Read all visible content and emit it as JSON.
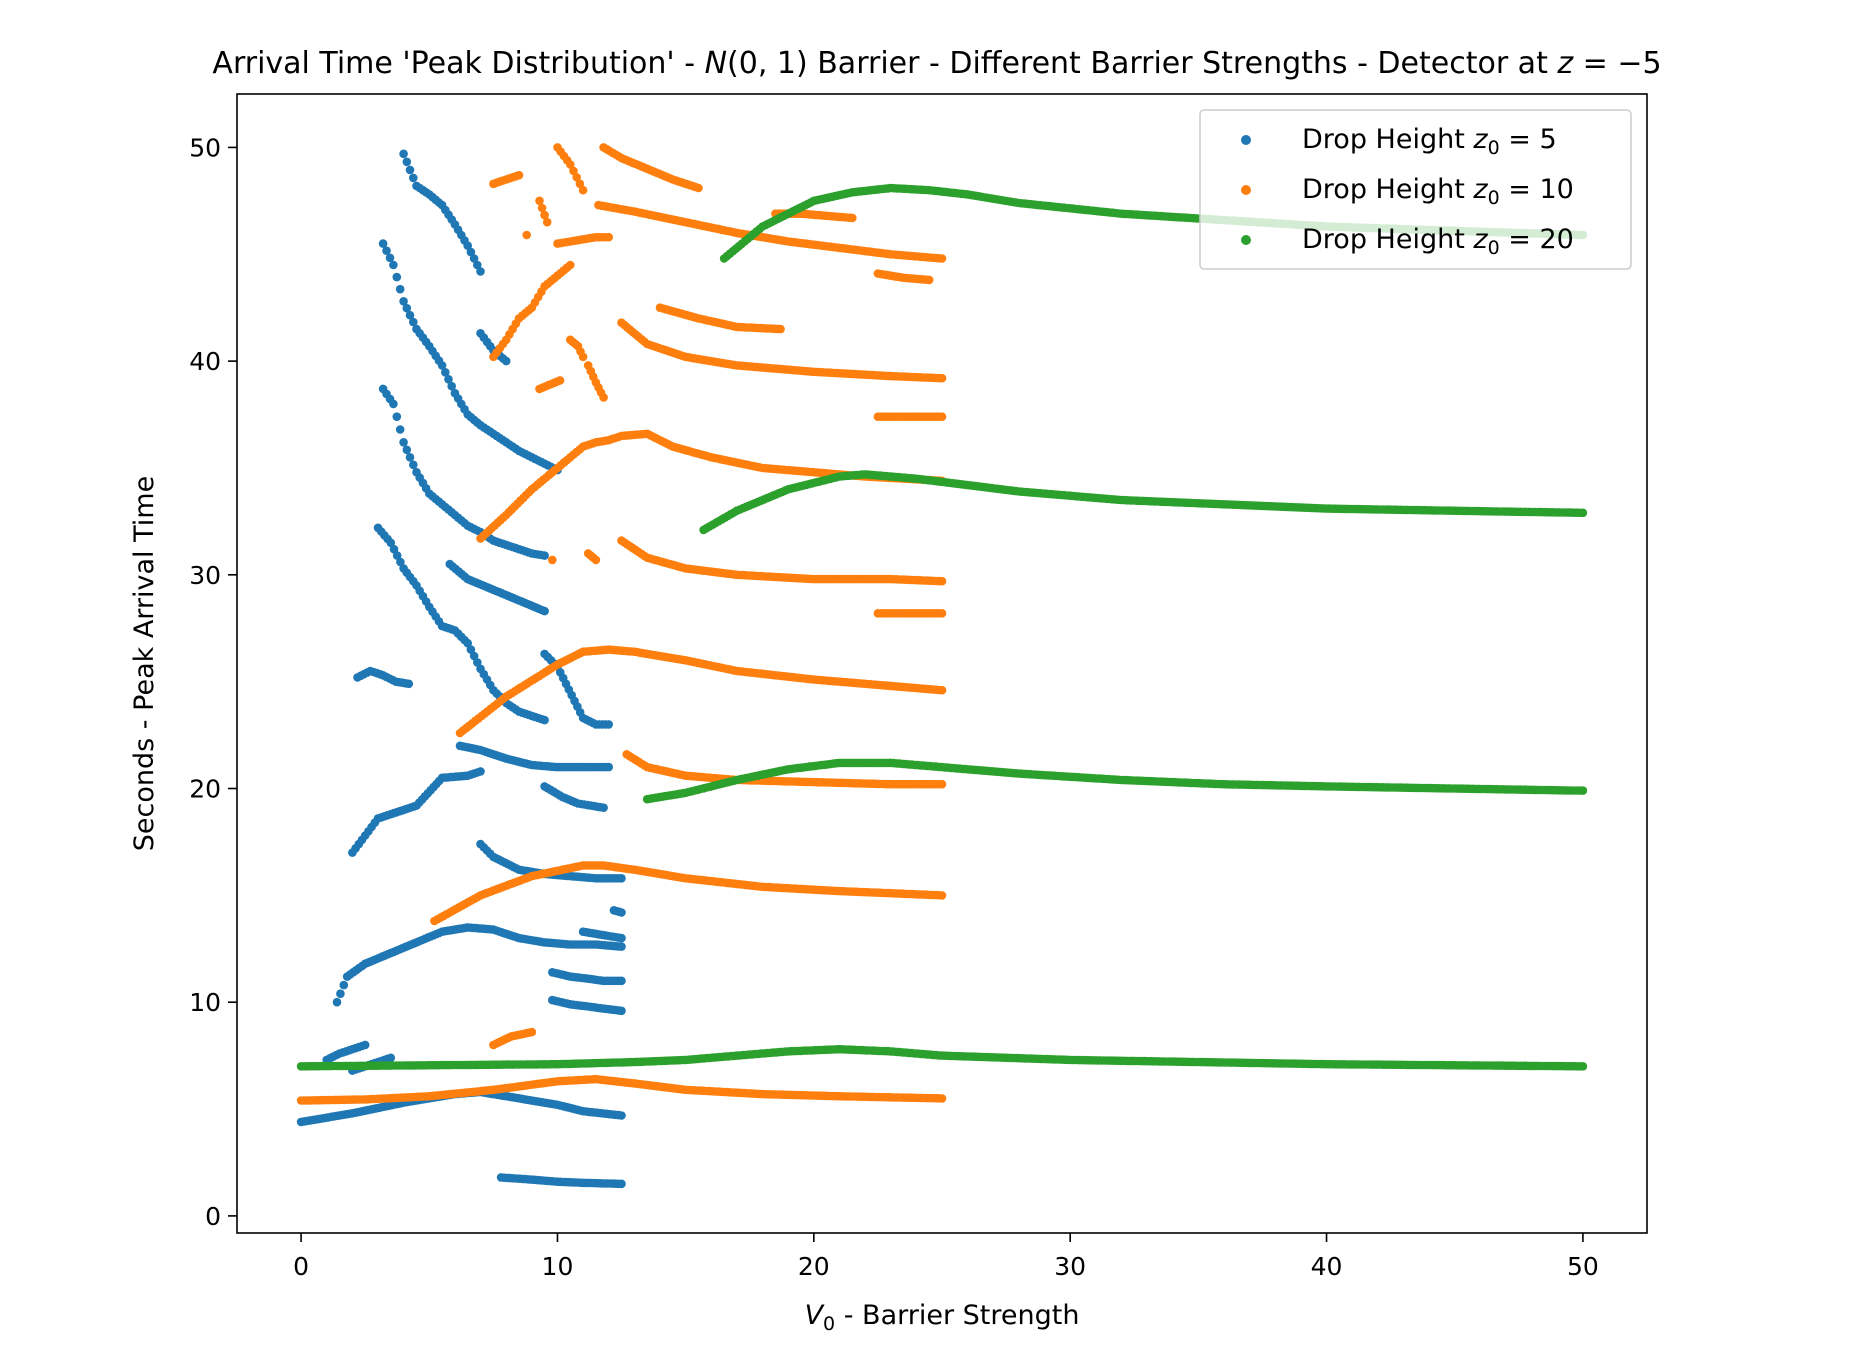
{
  "chart_data": {
    "type": "scatter",
    "title_parts": [
      "Arrival Time 'Peak Distribution' - ",
      "N",
      "(0, 1)",
      " Barrier - Different Barrier Strengths - Detector at ",
      "z",
      " = −5"
    ],
    "xlabel_parts": [
      "V",
      "0",
      " - Barrier Strength"
    ],
    "ylabel": "Seconds - Peak Arrival Time",
    "xlim": [
      -2.5,
      52.5
    ],
    "ylim": [
      -0.8,
      52.5
    ],
    "xticks": [
      0,
      10,
      20,
      30,
      40,
      50
    ],
    "yticks": [
      0,
      10,
      20,
      30,
      40,
      50
    ],
    "grid": false,
    "legend_position": "top-right",
    "series": [
      {
        "name_parts": [
          "Drop Height ",
          "z",
          "0",
          " = 5"
        ],
        "color": "#1f77b4",
        "branches": [
          {
            "x": [
              0,
              2,
              4,
              6,
              7,
              8,
              10,
              11,
              12.5
            ],
            "y": [
              4.4,
              4.8,
              5.3,
              5.7,
              5.8,
              5.6,
              5.2,
              4.9,
              4.7
            ]
          },
          {
            "x": [
              7.8,
              9,
              10,
              11,
              12.5
            ],
            "y": [
              1.8,
              1.7,
              1.6,
              1.55,
              1.5
            ]
          },
          {
            "x": [
              1.4,
              1.8,
              2.5,
              3.5,
              4.5,
              5.5,
              6.5,
              7.5,
              8.5,
              9.5,
              10.5,
              11.5,
              12.5
            ],
            "y": [
              10,
              11.2,
              11.8,
              12.3,
              12.8,
              13.3,
              13.5,
              13.4,
              13.0,
              12.8,
              12.7,
              12.7,
              12.6
            ]
          },
          {
            "x": [
              2,
              2.5,
              3,
              3.5,
              4.5,
              5.5,
              6.5,
              7
            ],
            "y": [
              17,
              17.8,
              18.6,
              18.8,
              19.2,
              20.5,
              20.6,
              20.8
            ]
          },
          {
            "x": [
              6.2,
              7,
              8,
              9,
              10,
              11,
              12
            ],
            "y": [
              22,
              21.8,
              21.4,
              21.1,
              21.0,
              21.0,
              21.0
            ]
          },
          {
            "x": [
              9.5,
              10.2,
              10.8,
              11.3,
              11.8
            ],
            "y": [
              20.1,
              19.6,
              19.3,
              19.2,
              19.1
            ]
          },
          {
            "x": [
              7,
              7.5,
              8.5,
              9.5,
              10.5,
              11.5,
              12.5
            ],
            "y": [
              17.4,
              16.8,
              16.2,
              16.0,
              15.9,
              15.8,
              15.8
            ]
          },
          {
            "x": [
              3,
              3.5,
              4,
              4.5,
              5,
              5.5,
              6,
              6.5,
              7,
              7.5,
              8,
              8.5,
              9,
              9.5
            ],
            "y": [
              32.2,
              31.5,
              30.3,
              29.5,
              28.5,
              27.6,
              27.4,
              26.8,
              25.6,
              24.6,
              24.0,
              23.6,
              23.4,
              23.2
            ]
          },
          {
            "x": [
              9.5,
              10,
              11,
              11.5,
              12
            ],
            "y": [
              26.3,
              25.7,
              23.3,
              23.0,
              23.0
            ]
          },
          {
            "x": [
              5.8,
              6.5,
              7.5,
              8.5,
              9.5
            ],
            "y": [
              30.5,
              29.8,
              29.3,
              28.8,
              28.3
            ]
          },
          {
            "x": [
              3.2,
              3.6,
              4,
              4.5,
              5,
              5.5,
              6,
              6.5,
              7,
              7.5,
              8,
              8.5,
              9,
              9.5
            ],
            "y": [
              38.7,
              38.0,
              36.2,
              34.8,
              33.8,
              33.3,
              32.8,
              32.3,
              32.0,
              31.6,
              31.4,
              31.2,
              31.0,
              30.9
            ]
          },
          {
            "x": [
              3.2,
              3.6,
              4,
              4.5,
              5,
              5.5,
              6,
              6.5,
              7,
              7.5,
              8,
              8.5,
              9,
              9.5,
              10
            ],
            "y": [
              45.5,
              44.5,
              42.8,
              41.5,
              40.7,
              39.8,
              38.5,
              37.5,
              37.0,
              36.6,
              36.2,
              35.8,
              35.5,
              35.2,
              34.9
            ]
          },
          {
            "x": [
              4,
              4.5,
              5,
              5.5,
              6,
              6.5,
              7
            ],
            "y": [
              49.7,
              48.2,
              47.8,
              47.3,
              46.4,
              45.4,
              44.2
            ]
          },
          {
            "x": [
              7,
              7.5,
              8
            ],
            "y": [
              41.3,
              40.5,
              40.0
            ]
          },
          {
            "x": [
              2.2,
              2.7,
              3.2,
              3.7,
              4.2
            ],
            "y": [
              25.2,
              25.5,
              25.3,
              25.0,
              24.9
            ]
          },
          {
            "x": [
              9.8,
              10.5,
              11.2,
              11.8,
              12.5
            ],
            "y": [
              10.1,
              9.9,
              9.8,
              9.7,
              9.6
            ]
          },
          {
            "x": [
              9.8,
              10.5,
              11.2,
              11.8,
              12.5
            ],
            "y": [
              11.4,
              11.2,
              11.1,
              11.0,
              11.0
            ]
          },
          {
            "x": [
              11,
              11.5,
              12,
              12.5
            ],
            "y": [
              13.3,
              13.2,
              13.1,
              13.0
            ]
          },
          {
            "x": [
              12.2,
              12.5
            ],
            "y": [
              14.3,
              14.2
            ]
          },
          {
            "x": [
              1,
              1.5,
              2,
              2.5
            ],
            "y": [
              7.3,
              7.6,
              7.8,
              8.0
            ]
          },
          {
            "x": [
              2,
              2.5,
              3,
              3.5
            ],
            "y": [
              6.8,
              7.0,
              7.2,
              7.4
            ]
          }
        ]
      },
      {
        "name_parts": [
          "Drop Height ",
          "z",
          "0",
          " = 10"
        ],
        "color": "#ff7f0e",
        "branches": [
          {
            "x": [
              0,
              2.5,
              5,
              7.5,
              10,
              11.5,
              13,
              15,
              18,
              21,
              25
            ],
            "y": [
              5.4,
              5.45,
              5.6,
              5.9,
              6.3,
              6.4,
              6.2,
              5.9,
              5.7,
              5.6,
              5.5
            ]
          },
          {
            "x": [
              7.5,
              8.2,
              9
            ],
            "y": [
              8.0,
              8.4,
              8.6
            ]
          },
          {
            "x": [
              5.2,
              7,
              9,
              11,
              11.8,
              13,
              15,
              18,
              21,
              25
            ],
            "y": [
              13.8,
              15.0,
              15.9,
              16.4,
              16.4,
              16.2,
              15.8,
              15.4,
              15.2,
              15.0
            ]
          },
          {
            "x": [
              6.2,
              8,
              10,
              11,
              12,
              13,
              15,
              17,
              20,
              23,
              25
            ],
            "y": [
              22.6,
              24.3,
              25.8,
              26.4,
              26.5,
              26.4,
              26.0,
              25.5,
              25.1,
              24.8,
              24.6
            ]
          },
          {
            "x": [
              12.7,
              13.5,
              15,
              17,
              20,
              23,
              25
            ],
            "y": [
              21.6,
              21.0,
              20.6,
              20.4,
              20.3,
              20.2,
              20.2
            ]
          },
          {
            "x": [
              7,
              8,
              9,
              10,
              10.5,
              11,
              11.5,
              12,
              12.5,
              13.5,
              14.5,
              16,
              18,
              20,
              22,
              25
            ],
            "y": [
              31.7,
              32.8,
              34.0,
              35.0,
              35.5,
              36.0,
              36.2,
              36.3,
              36.5,
              36.6,
              36.0,
              35.5,
              35.0,
              34.8,
              34.6,
              34.4
            ]
          },
          {
            "x": [
              12.5,
              13.5,
              15,
              17,
              20,
              23,
              25
            ],
            "y": [
              31.6,
              30.8,
              30.3,
              30.0,
              29.8,
              29.8,
              29.7
            ]
          },
          {
            "x": [
              22.5,
              24,
              25
            ],
            "y": [
              28.2,
              28.2,
              28.2
            ]
          },
          {
            "x": [
              12.5,
              13.5,
              15,
              17,
              20,
              23,
              25
            ],
            "y": [
              41.8,
              40.8,
              40.2,
              39.8,
              39.5,
              39.3,
              39.2
            ]
          },
          {
            "x": [
              22.5,
              24,
              25
            ],
            "y": [
              37.4,
              37.4,
              37.4
            ]
          },
          {
            "x": [
              14,
              15.5,
              17,
              18.7
            ],
            "y": [
              42.5,
              42.0,
              41.6,
              41.5
            ]
          },
          {
            "x": [
              11.6,
              13,
              15,
              17,
              19,
              21,
              23,
              25
            ],
            "y": [
              47.3,
              47.0,
              46.5,
              46.0,
              45.6,
              45.3,
              45.0,
              44.8
            ]
          },
          {
            "x": [
              22.5,
              23.5,
              24.5
            ],
            "y": [
              44.1,
              43.9,
              43.8
            ]
          },
          {
            "x": [
              11.8,
              12.5,
              13.5,
              14.5,
              15.5
            ],
            "y": [
              50,
              49.5,
              49.0,
              48.5,
              48.1
            ]
          },
          {
            "x": [
              10,
              10.5,
              11
            ],
            "y": [
              50,
              49.2,
              48.0
            ]
          },
          {
            "x": [
              7.5,
              8,
              8.5,
              9,
              9.5,
              10,
              10.5
            ],
            "y": [
              40.2,
              41.0,
              42.0,
              42.5,
              43.5,
              44.0,
              44.5
            ]
          },
          {
            "x": [
              10,
              10.5,
              11,
              11.5,
              12
            ],
            "y": [
              45.5,
              45.6,
              45.7,
              45.8,
              45.8
            ]
          },
          {
            "x": [
              7.5,
              8,
              8.5
            ],
            "y": [
              48.3,
              48.5,
              48.7
            ]
          },
          {
            "x": [
              11.2,
              11.5,
              11.8
            ],
            "y": [
              39.8,
              39.0,
              38.3
            ]
          },
          {
            "x": [
              10.5,
              10.8,
              11
            ],
            "y": [
              41.0,
              40.7,
              40.2
            ]
          },
          {
            "x": [
              9.3,
              10.1
            ],
            "y": [
              38.7,
              39.1
            ]
          },
          {
            "x": [
              11.2,
              11.5
            ],
            "y": [
              31.0,
              30.7
            ]
          },
          {
            "x": [
              9.8
            ],
            "y": [
              30.7
            ]
          },
          {
            "x": [
              9.3,
              9.6
            ],
            "y": [
              47.5,
              46.5
            ]
          },
          {
            "x": [
              8.8
            ],
            "y": [
              45.9
            ]
          },
          {
            "x": [
              18.5,
              19.5,
              20.5,
              21.5
            ],
            "y": [
              46.9,
              46.9,
              46.8,
              46.7
            ]
          }
        ]
      },
      {
        "name_parts": [
          "Drop Height ",
          "z",
          "0",
          " = 20"
        ],
        "color": "#2ca02c",
        "branches": [
          {
            "x": [
              0,
              5,
              10,
              13,
              15,
              17,
              19,
              21,
              23,
              25,
              30,
              35,
              40,
              45,
              50
            ],
            "y": [
              7.0,
              7.05,
              7.1,
              7.2,
              7.3,
              7.5,
              7.7,
              7.8,
              7.7,
              7.5,
              7.3,
              7.2,
              7.1,
              7.05,
              7.0
            ]
          },
          {
            "x": [
              13.5,
              15,
              17,
              19,
              21,
              23,
              25,
              28,
              32,
              36,
              40,
              45,
              50
            ],
            "y": [
              19.5,
              19.8,
              20.4,
              20.9,
              21.2,
              21.2,
              21.0,
              20.7,
              20.4,
              20.2,
              20.1,
              20.0,
              19.9
            ]
          },
          {
            "x": [
              15.7,
              17,
              19,
              21,
              22,
              24,
              26,
              28,
              32,
              36,
              40,
              45,
              50
            ],
            "y": [
              32.1,
              33.0,
              34.0,
              34.6,
              34.7,
              34.5,
              34.2,
              33.9,
              33.5,
              33.3,
              33.1,
              33.0,
              32.9
            ]
          },
          {
            "x": [
              16.5,
              18,
              20,
              21.5,
              23,
              24.5,
              26,
              28,
              32,
              36,
              40,
              45,
              50
            ],
            "y": [
              44.8,
              46.3,
              47.5,
              47.9,
              48.1,
              48.0,
              47.8,
              47.4,
              46.9,
              46.6,
              46.3,
              46.1,
              45.9
            ]
          }
        ]
      }
    ]
  }
}
